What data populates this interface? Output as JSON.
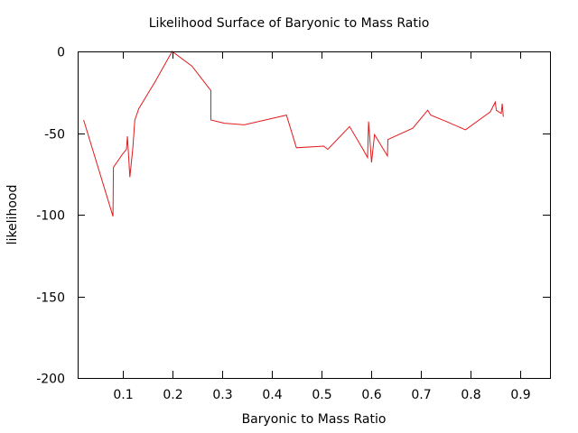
{
  "chart_data": {
    "type": "line",
    "title": "Likelihood Surface of Baryonic to Mass Ratio",
    "xlabel": "Baryonic to Mass Ratio",
    "ylabel": "likelihood",
    "xlim": [
      0.01,
      0.96
    ],
    "ylim": [
      -200,
      0
    ],
    "xticks": [
      0.1,
      0.2,
      0.3,
      0.4,
      0.5,
      0.6,
      0.7,
      0.8,
      0.9
    ],
    "xtick_labels": [
      "0.1",
      "0.2",
      "0.3",
      "0.4",
      "0.5",
      "0.6",
      "0.7",
      "0.8",
      "0.9"
    ],
    "yticks": [
      0,
      -50,
      -100,
      -150,
      -200
    ],
    "ytick_labels": [
      "0",
      "-50",
      "-100",
      "-150",
      "-200"
    ],
    "grid": false,
    "series_color": "#e41a1c",
    "series": [
      {
        "x": [
          0.022,
          0.081,
          0.082,
          0.1,
          0.108,
          0.11,
          0.115,
          0.121,
          0.125,
          0.133,
          0.165,
          0.2,
          0.24,
          0.278,
          0.278,
          0.305,
          0.345,
          0.43,
          0.45,
          0.505,
          0.513,
          0.557,
          0.584,
          0.593,
          0.595,
          0.601,
          0.607,
          0.633,
          0.634,
          0.684,
          0.714,
          0.72,
          0.752,
          0.79,
          0.84,
          0.85,
          0.852,
          0.862,
          0.864,
          0.866
        ],
        "y": [
          -42,
          -101,
          -71,
          -63,
          -60,
          -52,
          -77,
          -59,
          -42,
          -35,
          -19,
          0,
          -9,
          -24,
          -42,
          -44,
          -45,
          -39,
          -59,
          -58,
          -60,
          -46,
          -60,
          -65,
          -43,
          -68,
          -51,
          -64,
          -54,
          -47,
          -36,
          -39,
          -43,
          -48,
          -37,
          -31,
          -36,
          -38,
          -32,
          -40
        ]
      }
    ]
  }
}
